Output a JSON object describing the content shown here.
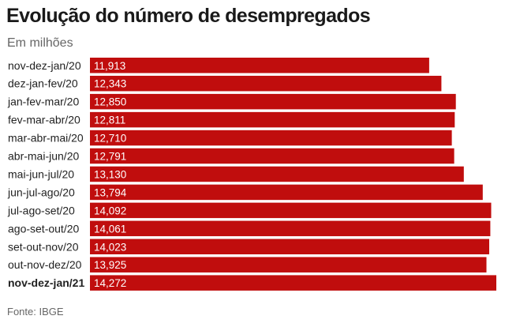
{
  "header": {
    "title": "Evolução do número de desempregados",
    "subtitle": "Em milhões"
  },
  "footer": {
    "source": "Fonte: IBGE"
  },
  "colors": {
    "bar": "#c00d0d",
    "bar_label": "#ffffff",
    "category_label": "#222222"
  },
  "chart_data": {
    "type": "bar",
    "orientation": "horizontal",
    "title": "Evolução do número de desempregados",
    "subtitle": "Em milhões",
    "xlabel": "",
    "ylabel": "",
    "grid": false,
    "legend": "none",
    "categories": [
      "nov-dez-jan/20",
      "dez-jan-fev/20",
      "jan-fev-mar/20",
      "fev-mar-abr/20",
      "mar-abr-mai/20",
      "abr-mai-jun/20",
      "mai-jun-jul/20",
      "jun-jul-ago/20",
      "jul-ago-set/20",
      "ago-set-out/20",
      "set-out-nov/20",
      "out-nov-dez/20",
      "nov-dez-jan/21"
    ],
    "values": [
      11.913,
      12.343,
      12.85,
      12.811,
      12.71,
      12.791,
      13.13,
      13.794,
      14.092,
      14.061,
      14.023,
      13.925,
      14.272
    ],
    "value_labels": [
      "11,913",
      "12,343",
      "12,850",
      "12,811",
      "12,710",
      "12,791",
      "13,130",
      "13,794",
      "14,092",
      "14,061",
      "14,023",
      "13,925",
      "14,272"
    ],
    "highlight_category": "nov-dez-jan/21"
  }
}
